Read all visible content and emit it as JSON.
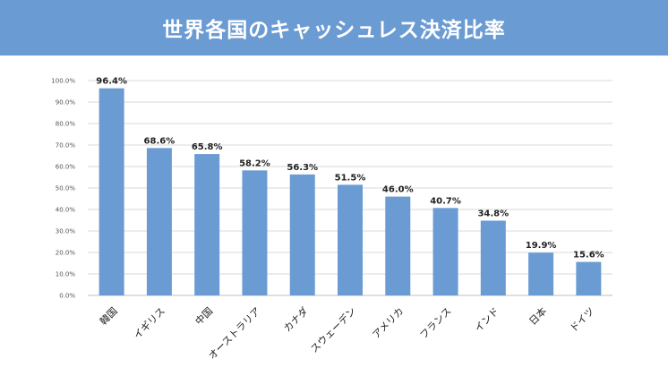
{
  "title": "世界各国のキャッシュレス決済比率",
  "colors": {
    "banner": "#6b9bd3",
    "bar": "#6b9bd3",
    "grid": "#d9d9d9",
    "highlight_label": "#e8001c",
    "label": "#222222"
  },
  "chart_data": {
    "type": "bar",
    "title": "世界各国のキャッシュレス決済比率",
    "xlabel": "",
    "ylabel": "",
    "ylim": [
      0,
      100
    ],
    "grid": true,
    "categories": [
      "韓国",
      "イギリス",
      "中国",
      "オーストラリア",
      "カナダ",
      "スウェーデン",
      "アメリカ",
      "フランス",
      "インド",
      "日本",
      "ドイツ"
    ],
    "values": [
      96.4,
      68.6,
      65.8,
      58.2,
      56.3,
      51.5,
      46.0,
      40.7,
      34.8,
      19.9,
      15.6
    ],
    "value_labels": [
      "96.4%",
      "68.6%",
      "65.8%",
      "58.2%",
      "56.3%",
      "51.5%",
      "46.0%",
      "40.7%",
      "34.8%",
      "19.9%",
      "15.6%"
    ],
    "yticks": [
      "0.0%",
      "10.0%",
      "20.0%",
      "30.0%",
      "40.0%",
      "50.0%",
      "60.0%",
      "70.0%",
      "80.0%",
      "90.0%",
      "100.0%"
    ],
    "highlight": "日本"
  }
}
